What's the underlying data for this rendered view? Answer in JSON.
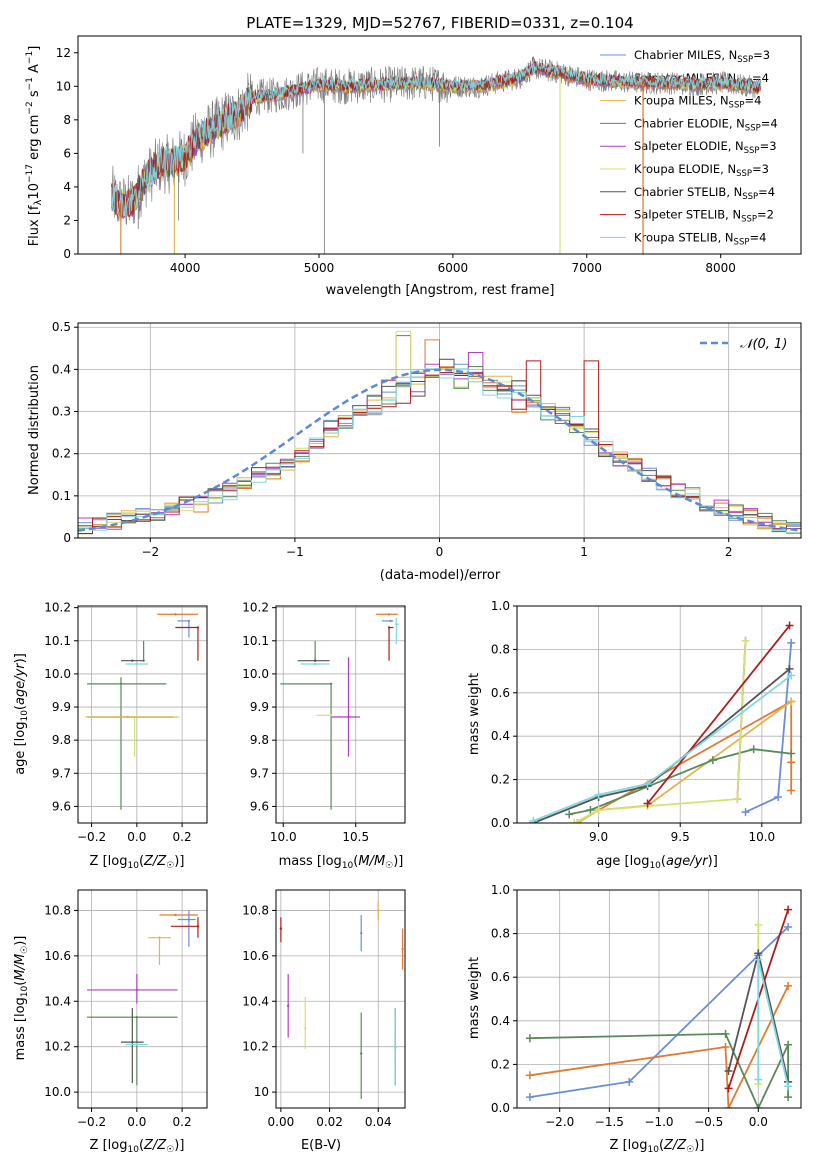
{
  "colors": {
    "chab_miles": "#6a8fd8",
    "salp_miles": "#e07a32",
    "krou_miles": "#e0b64a",
    "chab_elod": "#5a8a5a",
    "salp_elod": "#b040c0",
    "krou_elod": "#d4e070",
    "chab_stel": "#555555",
    "salp_stel": "#b01c1c",
    "krou_stel": "#80d8e0",
    "normal_curve": "#5b8ad6",
    "grid": "#b0b0b0"
  },
  "chart_data": [
    {
      "id": "spectrum",
      "type": "line",
      "title": "PLATE=1329, MJD=52767, FIBERID=0331, z=0.104",
      "xlabel": "wavelength [Angstrom, rest frame]",
      "ylabel": "Flux [f_λ 10^-17 erg cm^-2 s^-1 A^-1]",
      "xlim": [
        3200,
        8600
      ],
      "ylim": [
        0,
        13
      ],
      "xticks": [
        4000,
        5000,
        6000,
        7000,
        8000
      ],
      "yticks": [
        0,
        2,
        4,
        6,
        8,
        10,
        12
      ],
      "grid": false,
      "legend_position": "right",
      "data_envelope": {
        "x": [
          3450,
          3500,
          3600,
          3700,
          3800,
          3900,
          4000,
          4100,
          4200,
          4300,
          4400,
          4500,
          4700,
          5000,
          5200,
          5500,
          5800,
          6000,
          6200,
          6500,
          6600,
          6800,
          7000,
          7200,
          7400,
          7600,
          7800,
          8000,
          8200,
          8300
        ],
        "y": [
          3.6,
          3.0,
          3.0,
          4.4,
          5.3,
          5.4,
          5.8,
          7.0,
          7.4,
          8.0,
          8.4,
          9.3,
          9.5,
          10.1,
          10.0,
          10.1,
          10.2,
          10.0,
          10.0,
          10.5,
          11.1,
          10.8,
          10.4,
          10.3,
          10.2,
          10.2,
          10.1,
          10.2,
          10.0,
          9.9
        ]
      },
      "series": [
        {
          "name": "Chabrier MILES, N_SSP=3",
          "key": "chab_miles"
        },
        {
          "name": "Salpeter MILES, N_SSP=4",
          "key": "salp_miles"
        },
        {
          "name": "Kroupa MILES, N_SSP=4",
          "key": "krou_miles"
        },
        {
          "name": "Chabrier ELODIE, N_SSP=4",
          "key": "chab_elod"
        },
        {
          "name": "Salpeter ELODIE, N_SSP=3",
          "key": "salp_elod"
        },
        {
          "name": "Kroupa ELODIE, N_SSP=3",
          "key": "krou_elod"
        },
        {
          "name": "Chabrier STELIB, N_SSP=4",
          "key": "chab_stel"
        },
        {
          "name": "Salpeter STELIB, N_SSP=2",
          "key": "salp_stel"
        },
        {
          "name": "Kroupa STELIB, N_SSP=4",
          "key": "krou_stel"
        }
      ]
    },
    {
      "id": "residuals",
      "type": "step",
      "xlabel": "(data-model)/error",
      "ylabel": "Normed distribution",
      "xlim": [
        -2.5,
        2.5
      ],
      "ylim": [
        0,
        0.51
      ],
      "xticks": [
        -2,
        -1,
        0,
        1,
        2
      ],
      "yticks": [
        0.0,
        0.1,
        0.2,
        0.3,
        0.4,
        0.5
      ],
      "grid": true,
      "legend": "N(0,1)",
      "legend_position": "top-right",
      "bin_edges_start": -2.5,
      "bin_width": 0.1,
      "reference_histogram": [
        0.03,
        0.03,
        0.04,
        0.05,
        0.05,
        0.06,
        0.07,
        0.08,
        0.08,
        0.1,
        0.11,
        0.13,
        0.15,
        0.16,
        0.18,
        0.2,
        0.23,
        0.26,
        0.28,
        0.3,
        0.32,
        0.34,
        0.36,
        0.37,
        0.38,
        0.4,
        0.39,
        0.38,
        0.36,
        0.35,
        0.34,
        0.32,
        0.3,
        0.29,
        0.27,
        0.24,
        0.21,
        0.19,
        0.17,
        0.15,
        0.13,
        0.11,
        0.1,
        0.08,
        0.07,
        0.06,
        0.05,
        0.04,
        0.03,
        0.02
      ]
    },
    {
      "id": "age_vs_Z",
      "type": "errorbar",
      "xlabel": "Z [log10(Z/Z☉)]",
      "ylabel": "age  [log10(age/yr)]",
      "xlim": [
        -0.26,
        0.31
      ],
      "ylim": [
        9.55,
        10.205
      ],
      "xticks": [
        -0.2,
        0.0,
        0.2
      ],
      "yticks": [
        9.6,
        9.7,
        9.8,
        9.9,
        10.0,
        10.1,
        10.2
      ],
      "grid": true,
      "points": [
        {
          "key": "chab_miles",
          "x": 0.23,
          "xerr": [
            0.05,
            0.0
          ],
          "y": 10.16,
          "yerr": [
            0.05,
            0.0
          ]
        },
        {
          "key": "salp_miles",
          "x": 0.17,
          "xerr": [
            0.08,
            0.1
          ],
          "y": 10.18,
          "yerr": [
            0.0,
            0.0
          ]
        },
        {
          "key": "salp_stel",
          "x": 0.27,
          "xerr": [
            0.1,
            0.0
          ],
          "y": 10.14,
          "yerr": [
            0.1,
            0.0
          ]
        },
        {
          "key": "chab_elod",
          "x": 0.03,
          "xerr": [
            0.0,
            0.0
          ],
          "y": 10.04,
          "yerr": [
            0.0,
            0.06
          ]
        },
        {
          "key": "chab_stel",
          "x": -0.02,
          "xerr": [
            0.05,
            0.05
          ],
          "y": 10.04,
          "yerr": [
            0.0,
            0.0
          ]
        },
        {
          "key": "krou_stel",
          "x": 0.0,
          "xerr": [
            0.05,
            0.05
          ],
          "y": 10.03,
          "yerr": [
            0.0,
            0.0
          ]
        },
        {
          "key": "chab_elod",
          "x": -0.07,
          "xerr": [
            0.15,
            0.2
          ],
          "y": 9.97,
          "yerr": [
            0.38,
            0.02
          ]
        },
        {
          "key": "salp_elod",
          "x": -0.04,
          "xerr": [
            0.18,
            0.22
          ],
          "y": 9.87,
          "yerr": [
            0.0,
            0.0
          ]
        },
        {
          "key": "krou_elod",
          "x": -0.01,
          "xerr": [
            0.22,
            0.2
          ],
          "y": 9.87,
          "yerr": [
            0.12,
            0.0
          ]
        },
        {
          "key": "krou_miles",
          "x": -0.04,
          "xerr": [
            0.18,
            0.2
          ],
          "y": 9.87,
          "yerr": [
            0.0,
            0.0
          ]
        }
      ]
    },
    {
      "id": "age_vs_mass",
      "type": "errorbar",
      "xlabel": "mass [log10(M/M☉)]",
      "ylabel": "",
      "xlim": [
        9.95,
        10.84
      ],
      "ylim": [
        9.55,
        10.205
      ],
      "xticks": [
        10.0,
        10.5
      ],
      "yticks": [
        9.6,
        9.7,
        9.8,
        9.9,
        10.0,
        10.1,
        10.2
      ],
      "grid": true,
      "points": [
        {
          "key": "chab_miles",
          "x": 10.74,
          "xerr": [
            0.06,
            0.02
          ],
          "y": 10.16,
          "yerr": [
            0.0,
            0.0
          ]
        },
        {
          "key": "salp_miles",
          "x": 10.73,
          "xerr": [
            0.09,
            0.06
          ],
          "y": 10.18,
          "yerr": [
            0.0,
            0.0
          ]
        },
        {
          "key": "salp_stel",
          "x": 10.73,
          "xerr": [
            0.0,
            0.03
          ],
          "y": 10.14,
          "yerr": [
            0.1,
            0.0
          ]
        },
        {
          "key": "krou_stel",
          "x": 10.78,
          "xerr": [
            0.0,
            0.02
          ],
          "y": 10.15,
          "yerr": [
            0.06,
            0.02
          ]
        },
        {
          "key": "chab_elod",
          "x": 10.22,
          "xerr": [
            0.0,
            0.0
          ],
          "y": 10.04,
          "yerr": [
            0.0,
            0.06
          ]
        },
        {
          "key": "chab_stel",
          "x": 10.22,
          "xerr": [
            0.12,
            0.1
          ],
          "y": 10.04,
          "yerr": [
            0.0,
            0.0
          ]
        },
        {
          "key": "krou_stel",
          "x": 10.22,
          "xerr": [
            0.1,
            0.1
          ],
          "y": 10.03,
          "yerr": [
            0.0,
            0.0
          ]
        },
        {
          "key": "chab_elod",
          "x": 10.33,
          "xerr": [
            0.35,
            0.0
          ],
          "y": 9.97,
          "yerr": [
            0.38,
            0.0
          ]
        },
        {
          "key": "salp_elod",
          "x": 10.45,
          "xerr": [
            0.12,
            0.08
          ],
          "y": 9.87,
          "yerr": [
            0.12,
            0.18
          ]
        },
        {
          "key": "krou_elod",
          "x": 10.33,
          "xerr": [
            0.1,
            0.0
          ],
          "y": 9.875,
          "yerr": [
            0.0,
            0.0
          ]
        }
      ]
    },
    {
      "id": "massweight_vs_age",
      "type": "line",
      "xlabel": "age  [log10(age/yr)]",
      "ylabel": "mass weight",
      "xlim": [
        8.5,
        10.24
      ],
      "ylim": [
        0.0,
        1.0
      ],
      "xticks": [
        9.0,
        9.5,
        10.0
      ],
      "yticks": [
        0.0,
        0.2,
        0.4,
        0.6,
        0.8,
        1.0
      ],
      "grid": true,
      "series": [
        {
          "key": "chab_miles",
          "x": [
            9.9,
            10.1,
            10.18
          ],
          "y": [
            0.05,
            0.12,
            0.83
          ]
        },
        {
          "key": "salp_miles",
          "x": [
            8.87,
            9.0,
            10.18,
            10.18,
            10.18
          ],
          "y": [
            0.0,
            0.06,
            0.56,
            0.28,
            0.15
          ]
        },
        {
          "key": "krou_miles",
          "x": [
            8.87,
            9.0,
            9.3,
            10.18
          ],
          "y": [
            0.0,
            0.06,
            0.08,
            0.56
          ]
        },
        {
          "key": "chab_elod",
          "x": [
            8.82,
            8.95,
            9.7,
            9.95,
            10.18
          ],
          "y": [
            0.04,
            0.06,
            0.29,
            0.34,
            0.32
          ]
        },
        {
          "key": "salp_elod",
          "x": [
            9.85,
            9.9
          ],
          "y": [
            0.11,
            0.84
          ]
        },
        {
          "key": "krou_elod",
          "x": [
            8.85,
            9.0,
            9.85,
            9.9
          ],
          "y": [
            0.0,
            0.06,
            0.11,
            0.84
          ]
        },
        {
          "key": "chab_stel",
          "x": [
            8.6,
            9.0,
            9.3,
            10.17
          ],
          "y": [
            0.0,
            0.12,
            0.17,
            0.71
          ]
        },
        {
          "key": "salp_stel",
          "x": [
            9.3,
            10.17
          ],
          "y": [
            0.09,
            0.91
          ]
        },
        {
          "key": "krou_stel",
          "x": [
            8.6,
            9.0,
            9.3,
            10.18
          ],
          "y": [
            0.01,
            0.13,
            0.18,
            0.68
          ]
        }
      ]
    },
    {
      "id": "mass_vs_Z",
      "type": "errorbar",
      "xlabel": "Z [log10(Z/Z☉)]",
      "ylabel": "mass [log10(M/M☉)]",
      "xlim": [
        -0.26,
        0.31
      ],
      "ylim": [
        9.93,
        10.89
      ],
      "xticks": [
        -0.2,
        0.0,
        0.2
      ],
      "yticks": [
        10.0,
        10.2,
        10.4,
        10.6,
        10.8
      ],
      "grid": true,
      "points": [
        {
          "key": "chab_miles",
          "x": 0.23,
          "xerr": [
            0.05,
            0.03
          ],
          "y": 10.76,
          "yerr": [
            0.12,
            0.04
          ]
        },
        {
          "key": "salp_miles",
          "x": 0.17,
          "xerr": [
            0.07,
            0.1
          ],
          "y": 10.78,
          "yerr": [
            0.0,
            0.0
          ]
        },
        {
          "key": "salp_stel",
          "x": 0.27,
          "xerr": [
            0.12,
            0.0
          ],
          "y": 10.73,
          "yerr": [
            0.05,
            0.04
          ]
        },
        {
          "key": "krou_miles",
          "x": 0.1,
          "xerr": [
            0.05,
            0.05
          ],
          "y": 10.68,
          "yerr": [
            0.12,
            0.0
          ]
        },
        {
          "key": "salp_elod",
          "x": 0.0,
          "xerr": [
            0.22,
            0.18
          ],
          "y": 10.45,
          "yerr": [
            0.06,
            0.07
          ]
        },
        {
          "key": "krou_elod",
          "x": 0.0,
          "xerr": [
            0.22,
            0.18
          ],
          "y": 10.33,
          "yerr": [
            0.0,
            0.0
          ]
        },
        {
          "key": "chab_elod",
          "x": 0.0,
          "xerr": [
            0.22,
            0.18
          ],
          "y": 10.33,
          "yerr": [
            0.3,
            0.0
          ]
        },
        {
          "key": "chab_stel",
          "x": -0.02,
          "xerr": [
            0.05,
            0.05
          ],
          "y": 10.22,
          "yerr": [
            0.18,
            0.15
          ]
        },
        {
          "key": "krou_stel",
          "x": 0.0,
          "xerr": [
            0.05,
            0.05
          ],
          "y": 10.21,
          "yerr": [
            0.0,
            0.0
          ]
        }
      ]
    },
    {
      "id": "mass_vs_ebv",
      "type": "errorbar",
      "xlabel": "E(B-V)",
      "ylabel": "",
      "xlim": [
        -0.002,
        0.051
      ],
      "ylim": [
        9.93,
        10.89
      ],
      "xticks": [
        0.0,
        0.02,
        0.04
      ],
      "yticks": [
        10.0,
        10.2,
        10.4,
        10.6,
        10.8
      ],
      "grid": true,
      "points": [
        {
          "key": "salp_stel",
          "x": 0.0,
          "y": 10.72,
          "yerr": [
            0.06,
            0.05
          ]
        },
        {
          "key": "salp_elod",
          "x": 0.003,
          "y": 10.38,
          "yerr": [
            0.14,
            0.14
          ]
        },
        {
          "key": "krou_elod",
          "x": 0.01,
          "y": 10.28,
          "yerr": [
            0.09,
            0.14
          ]
        },
        {
          "key": "chab_elod",
          "x": 0.033,
          "y": 10.17,
          "yerr": [
            0.2,
            0.18
          ]
        },
        {
          "key": "chab_miles",
          "x": 0.033,
          "y": 10.7,
          "yerr": [
            0.08,
            0.08
          ]
        },
        {
          "key": "krou_miles",
          "x": 0.04,
          "y": 10.8,
          "yerr": [
            0.04,
            0.04
          ]
        },
        {
          "key": "chab_stel",
          "x": 0.047,
          "y": 10.2,
          "yerr": [
            0.17,
            0.17
          ]
        },
        {
          "key": "krou_stel",
          "x": 0.047,
          "y": 10.2,
          "yerr": [
            0.17,
            0.17
          ]
        },
        {
          "key": "salp_miles",
          "x": 0.05,
          "y": 10.63,
          "yerr": [
            0.09,
            0.09
          ]
        }
      ]
    },
    {
      "id": "massweight_vs_Z",
      "type": "line",
      "xlabel": "Z [log10(Z/Z☉)]",
      "ylabel": "mass weight",
      "xlim": [
        -2.43,
        0.43
      ],
      "ylim": [
        0.0,
        1.0
      ],
      "xticks": [
        -2.0,
        -1.5,
        -1.0,
        -0.5,
        0.0
      ],
      "yticks": [
        0.0,
        0.2,
        0.4,
        0.6,
        0.8,
        1.0
      ],
      "grid": true,
      "series": [
        {
          "key": "chab_miles",
          "x": [
            -2.3,
            -1.3,
            0.0,
            0.3
          ],
          "y": [
            0.05,
            0.12,
            0.7,
            0.83
          ]
        },
        {
          "key": "salp_miles",
          "x": [
            -2.3,
            -0.33,
            -0.3,
            0.3
          ],
          "y": [
            0.15,
            0.28,
            0.0,
            0.56
          ]
        },
        {
          "key": "chab_elod",
          "x": [
            -2.3,
            -0.33,
            0.0,
            0.3,
            0.3,
            0.3
          ],
          "y": [
            0.32,
            0.34,
            0.0,
            0.29,
            0.12,
            0.05
          ]
        },
        {
          "key": "krou_elod",
          "x": [
            0.0,
            0.0
          ],
          "y": [
            0.11,
            0.84
          ]
        },
        {
          "key": "chab_stel",
          "x": [
            -0.3,
            0.0,
            0.3
          ],
          "y": [
            0.17,
            0.71,
            0.12
          ]
        },
        {
          "key": "salp_stel",
          "x": [
            -0.3,
            0.3
          ],
          "y": [
            0.09,
            0.91
          ]
        },
        {
          "key": "krou_stel",
          "x": [
            0.0,
            0.0,
            0.3
          ],
          "y": [
            0.13,
            0.68,
            0.1
          ]
        }
      ]
    }
  ]
}
